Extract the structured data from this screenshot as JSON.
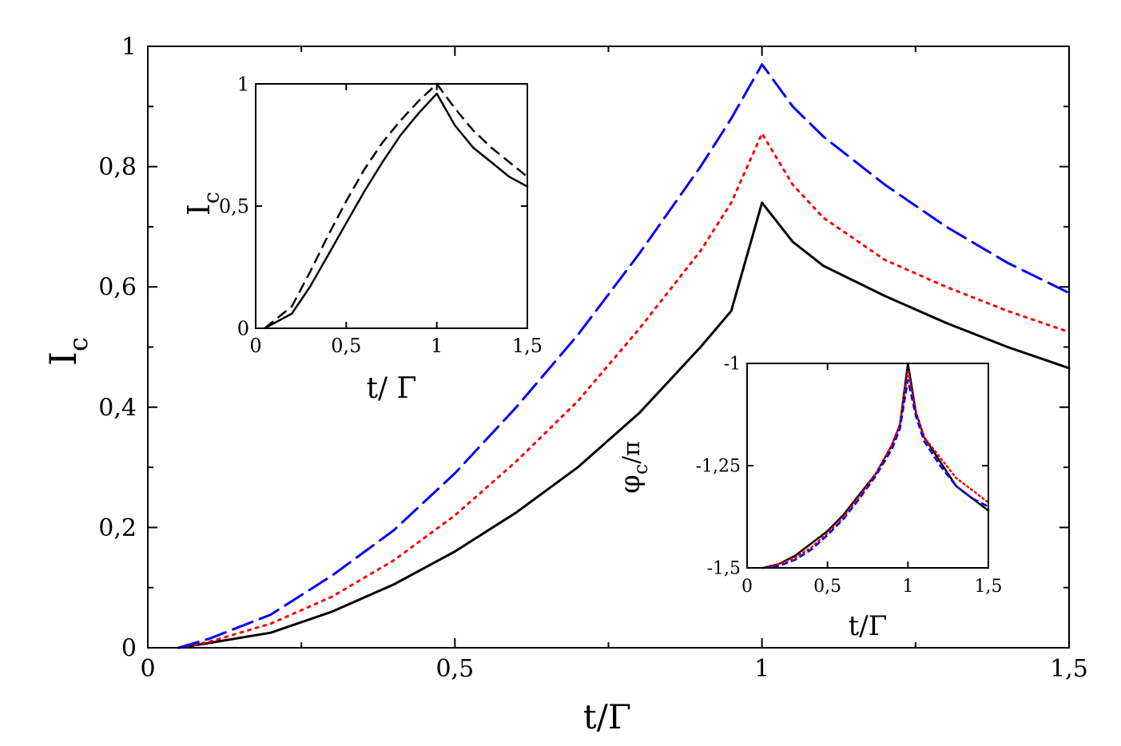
{
  "chart_data": [
    {
      "id": "main",
      "type": "line",
      "xlabel": "t/Γ",
      "ylabel": "I",
      "ylabel_sub": "c",
      "xlim": [
        0,
        1.5
      ],
      "ylim": [
        0,
        1
      ],
      "xticks": [
        {
          "v": 0,
          "label": "0"
        },
        {
          "v": 0.5,
          "label": "0,5"
        },
        {
          "v": 1,
          "label": "1"
        },
        {
          "v": 1.5,
          "label": "1,5"
        }
      ],
      "yticks": [
        {
          "v": 0,
          "label": "0"
        },
        {
          "v": 0.2,
          "label": "0,2"
        },
        {
          "v": 0.4,
          "label": "0,4"
        },
        {
          "v": 0.6,
          "label": "0,6"
        },
        {
          "v": 0.8,
          "label": "0,8"
        },
        {
          "v": 1,
          "label": "1"
        }
      ],
      "series": [
        {
          "name": "solid",
          "color": "#000000",
          "dash": "",
          "points": [
            [
              0.05,
              0
            ],
            [
              0.1,
              0.008
            ],
            [
              0.2,
              0.025
            ],
            [
              0.3,
              0.06
            ],
            [
              0.4,
              0.105
            ],
            [
              0.5,
              0.16
            ],
            [
              0.6,
              0.225
            ],
            [
              0.7,
              0.3
            ],
            [
              0.8,
              0.39
            ],
            [
              0.9,
              0.5
            ],
            [
              0.95,
              0.56
            ],
            [
              1.0,
              0.74
            ],
            [
              1.05,
              0.675
            ],
            [
              1.1,
              0.635
            ],
            [
              1.2,
              0.585
            ],
            [
              1.3,
              0.54
            ],
            [
              1.4,
              0.5
            ],
            [
              1.5,
              0.465
            ]
          ]
        },
        {
          "name": "dotted",
          "color": "#ff0000",
          "dash": "3,7",
          "points": [
            [
              0.05,
              0
            ],
            [
              0.1,
              0.01
            ],
            [
              0.2,
              0.04
            ],
            [
              0.3,
              0.085
            ],
            [
              0.4,
              0.145
            ],
            [
              0.5,
              0.22
            ],
            [
              0.6,
              0.31
            ],
            [
              0.7,
              0.41
            ],
            [
              0.8,
              0.53
            ],
            [
              0.9,
              0.66
            ],
            [
              0.95,
              0.74
            ],
            [
              1.0,
              0.855
            ],
            [
              1.05,
              0.77
            ],
            [
              1.1,
              0.715
            ],
            [
              1.2,
              0.645
            ],
            [
              1.3,
              0.6
            ],
            [
              1.4,
              0.56
            ],
            [
              1.5,
              0.525
            ]
          ]
        },
        {
          "name": "dashed",
          "color": "#0000ff",
          "dash": "26,10",
          "points": [
            [
              0.05,
              0
            ],
            [
              0.1,
              0.015
            ],
            [
              0.2,
              0.055
            ],
            [
              0.3,
              0.12
            ],
            [
              0.4,
              0.195
            ],
            [
              0.5,
              0.29
            ],
            [
              0.6,
              0.4
            ],
            [
              0.7,
              0.52
            ],
            [
              0.8,
              0.655
            ],
            [
              0.9,
              0.8
            ],
            [
              0.95,
              0.88
            ],
            [
              1.0,
              0.97
            ],
            [
              1.05,
              0.9
            ],
            [
              1.1,
              0.85
            ],
            [
              1.2,
              0.77
            ],
            [
              1.3,
              0.7
            ],
            [
              1.4,
              0.64
            ],
            [
              1.5,
              0.59
            ]
          ]
        }
      ]
    },
    {
      "id": "inset1",
      "type": "line",
      "xlabel": "t/ Γ",
      "ylabel": "I",
      "ylabel_sub": "c",
      "xlim": [
        0,
        1.5
      ],
      "ylim": [
        0,
        1
      ],
      "xticks": [
        {
          "v": 0,
          "label": "0"
        },
        {
          "v": 0.5,
          "label": "0,5"
        },
        {
          "v": 1,
          "label": "1"
        },
        {
          "v": 1.5,
          "label": "1,5"
        }
      ],
      "yticks": [
        {
          "v": 0,
          "label": "0"
        },
        {
          "v": 0.5,
          "label": "0,5"
        },
        {
          "v": 1,
          "label": "1"
        }
      ],
      "series": [
        {
          "name": "solid",
          "color": "#000000",
          "dash": "",
          "points": [
            [
              0.05,
              0
            ],
            [
              0.2,
              0.06
            ],
            [
              0.3,
              0.17
            ],
            [
              0.4,
              0.3
            ],
            [
              0.5,
              0.43
            ],
            [
              0.6,
              0.56
            ],
            [
              0.7,
              0.68
            ],
            [
              0.8,
              0.79
            ],
            [
              0.9,
              0.88
            ],
            [
              1.0,
              0.96
            ],
            [
              1.1,
              0.83
            ],
            [
              1.2,
              0.74
            ],
            [
              1.3,
              0.68
            ],
            [
              1.4,
              0.62
            ],
            [
              1.5,
              0.58
            ]
          ]
        },
        {
          "name": "dashed",
          "color": "#000000",
          "dash": "14,7",
          "points": [
            [
              0.05,
              0
            ],
            [
              0.2,
              0.09
            ],
            [
              0.3,
              0.23
            ],
            [
              0.4,
              0.38
            ],
            [
              0.5,
              0.52
            ],
            [
              0.6,
              0.65
            ],
            [
              0.7,
              0.76
            ],
            [
              0.8,
              0.85
            ],
            [
              0.9,
              0.93
            ],
            [
              1.0,
              1.0
            ],
            [
              1.1,
              0.9
            ],
            [
              1.2,
              0.81
            ],
            [
              1.3,
              0.74
            ],
            [
              1.4,
              0.68
            ],
            [
              1.5,
              0.62
            ]
          ]
        }
      ]
    },
    {
      "id": "inset2",
      "type": "line",
      "xlabel": "t/Γ",
      "ylabel": "φ",
      "ylabel_sub": "c",
      "ylabel_rest": "/π",
      "xlim": [
        0,
        1.5
      ],
      "ylim": [
        -1.5,
        -1
      ],
      "xticks": [
        {
          "v": 0,
          "label": "0"
        },
        {
          "v": 0.5,
          "label": "0,5"
        },
        {
          "v": 1,
          "label": "1"
        },
        {
          "v": 1.5,
          "label": "1,5"
        }
      ],
      "yticks": [
        {
          "v": -1.5,
          "label": "-1,5"
        },
        {
          "v": -1.25,
          "label": "-1,25"
        },
        {
          "v": -1,
          "label": "-1"
        }
      ],
      "series": [
        {
          "name": "solid",
          "color": "#000000",
          "dash": "",
          "points": [
            [
              0.1,
              -1.5
            ],
            [
              0.2,
              -1.49
            ],
            [
              0.3,
              -1.47
            ],
            [
              0.4,
              -1.44
            ],
            [
              0.5,
              -1.41
            ],
            [
              0.6,
              -1.37
            ],
            [
              0.7,
              -1.32
            ],
            [
              0.8,
              -1.27
            ],
            [
              0.9,
              -1.2
            ],
            [
              0.95,
              -1.15
            ],
            [
              1.0,
              -1.0
            ],
            [
              1.05,
              -1.12
            ],
            [
              1.1,
              -1.18
            ],
            [
              1.2,
              -1.24
            ],
            [
              1.3,
              -1.3
            ],
            [
              1.4,
              -1.33
            ],
            [
              1.5,
              -1.36
            ]
          ]
        },
        {
          "name": "dotted",
          "color": "#ff0000",
          "dash": "2,4",
          "points": [
            [
              0.1,
              -1.5
            ],
            [
              0.2,
              -1.49
            ],
            [
              0.3,
              -1.475
            ],
            [
              0.4,
              -1.45
            ],
            [
              0.5,
              -1.415
            ],
            [
              0.6,
              -1.375
            ],
            [
              0.7,
              -1.325
            ],
            [
              0.8,
              -1.27
            ],
            [
              0.9,
              -1.2
            ],
            [
              0.95,
              -1.15
            ],
            [
              1.0,
              -1.02
            ],
            [
              1.05,
              -1.12
            ],
            [
              1.1,
              -1.18
            ],
            [
              1.2,
              -1.23
            ],
            [
              1.3,
              -1.28
            ],
            [
              1.4,
              -1.31
            ],
            [
              1.5,
              -1.34
            ]
          ]
        },
        {
          "name": "dashed",
          "color": "#0000ff",
          "dash": "8,4",
          "points": [
            [
              0.1,
              -1.5
            ],
            [
              0.2,
              -1.495
            ],
            [
              0.3,
              -1.48
            ],
            [
              0.4,
              -1.455
            ],
            [
              0.5,
              -1.42
            ],
            [
              0.6,
              -1.38
            ],
            [
              0.7,
              -1.33
            ],
            [
              0.8,
              -1.275
            ],
            [
              0.9,
              -1.21
            ],
            [
              0.95,
              -1.16
            ],
            [
              1.0,
              -1.04
            ],
            [
              1.05,
              -1.13
            ],
            [
              1.1,
              -1.19
            ],
            [
              1.2,
              -1.25
            ],
            [
              1.3,
              -1.3
            ],
            [
              1.4,
              -1.33
            ],
            [
              1.5,
              -1.35
            ]
          ]
        }
      ]
    }
  ]
}
